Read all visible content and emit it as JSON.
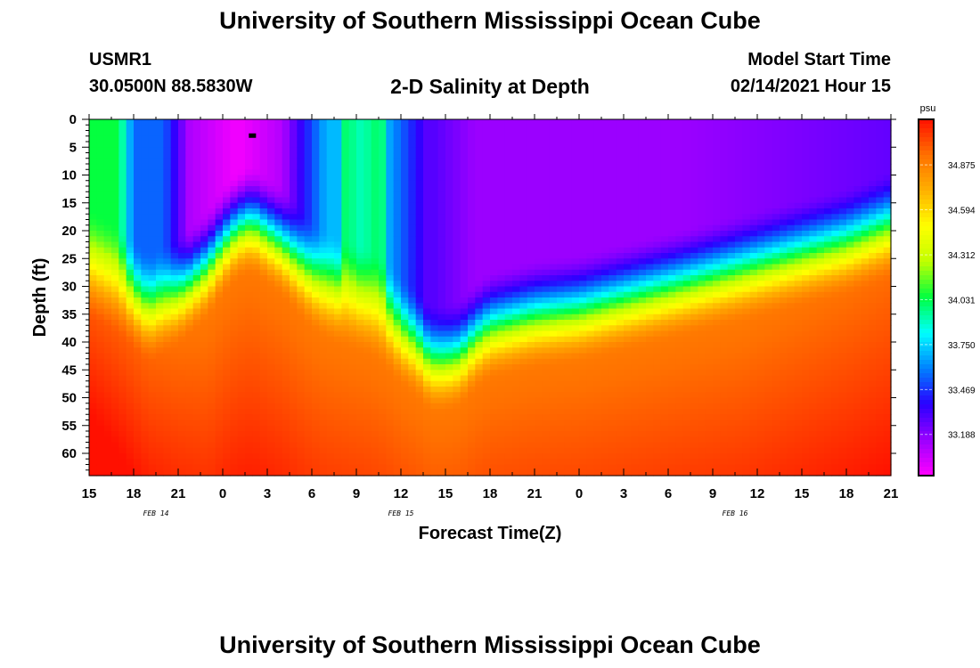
{
  "title": "University of Southern Mississippi Ocean Cube",
  "footer_title": "University of Southern Mississippi Ocean Cube",
  "header": {
    "station": "USMR1",
    "location": "30.0500N 88.5830W",
    "subtitle": "2-D Salinity at Depth",
    "model_label": "Model Start Time",
    "model_time": "02/14/2021 Hour 15"
  },
  "chart_data": {
    "type": "heatmap",
    "title": "2-D Salinity at Depth",
    "xlabel": "Forecast Time(Z)",
    "ylabel": "Depth (ft)",
    "x_tick_labels": [
      "15",
      "18",
      "21",
      "0",
      "3",
      "6",
      "9",
      "12",
      "15",
      "18",
      "21",
      "0",
      "3",
      "6",
      "9",
      "12",
      "15",
      "18",
      "21"
    ],
    "x_range_hours": [
      0,
      54
    ],
    "date_labels": [
      {
        "label": "FEB 14",
        "hour": 4.5
      },
      {
        "label": "FEB 15",
        "hour": 21
      },
      {
        "label": "FEB 16",
        "hour": 43.5
      }
    ],
    "y_tick_labels": [
      "0",
      "5",
      "10",
      "15",
      "20",
      "25",
      "30",
      "35",
      "40",
      "45",
      "50",
      "55",
      "60"
    ],
    "ylim": [
      0,
      64
    ],
    "colorbar": {
      "unit": "psu",
      "ticks": [
        "34.875",
        "34.594",
        "34.312",
        "34.031",
        "33.750",
        "33.469",
        "33.188"
      ],
      "range": [
        32.93,
        35.16
      ],
      "colors": [
        "#ff00ff",
        "#9a00ff",
        "#2a00ff",
        "#0080ff",
        "#00ffff",
        "#00ff40",
        "#c0ff00",
        "#ffff00",
        "#ffb000",
        "#ff7000",
        "#ff1000"
      ]
    },
    "halocline_depth_ft": [
      [
        0,
        26
      ],
      [
        2,
        29
      ],
      [
        4,
        34
      ],
      [
        6,
        31
      ],
      [
        8,
        26
      ],
      [
        9,
        22
      ],
      [
        10,
        19
      ],
      [
        11,
        18
      ],
      [
        12,
        20
      ],
      [
        13,
        22
      ],
      [
        14,
        25
      ],
      [
        15,
        28
      ],
      [
        16,
        30
      ],
      [
        17,
        31
      ],
      [
        18,
        32
      ],
      [
        19,
        33
      ],
      [
        20,
        35
      ],
      [
        21,
        38
      ],
      [
        22,
        40
      ],
      [
        23,
        43
      ],
      [
        24,
        43
      ],
      [
        25,
        42
      ],
      [
        26,
        39
      ],
      [
        27,
        37
      ],
      [
        30,
        35
      ],
      [
        33,
        34
      ],
      [
        36,
        32
      ],
      [
        39,
        30
      ],
      [
        42,
        28
      ],
      [
        45,
        26
      ],
      [
        48,
        24
      ],
      [
        51,
        22
      ],
      [
        54,
        19
      ]
    ],
    "low_salinity_core": [
      {
        "hour": 11,
        "depth_ft": 5,
        "min_psu": 32.95
      },
      {
        "hour": 40,
        "depth_ft": 10,
        "min_psu": 33.1
      }
    ],
    "max_salinity": {
      "hour": 1.5,
      "depth_ft": 64,
      "value_psu": 35.15
    }
  }
}
